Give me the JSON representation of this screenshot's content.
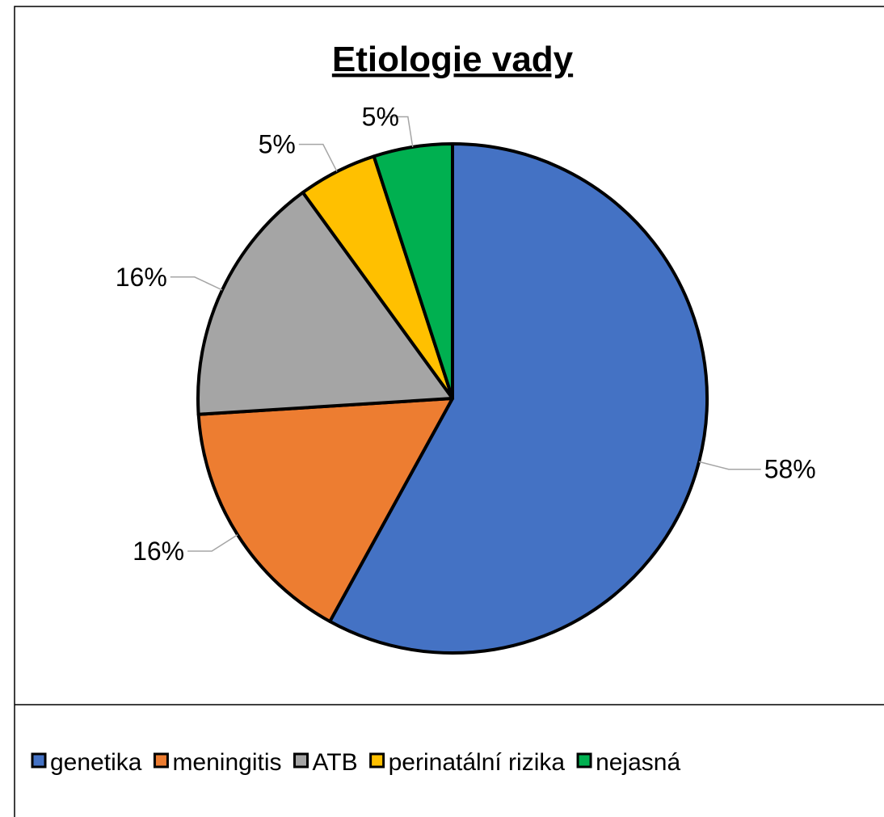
{
  "chart_data": {
    "type": "pie",
    "title": "Etiologie vady",
    "categories": [
      "genetika",
      "meningitis",
      "ATB",
      "perinatální rizika",
      "nejasná"
    ],
    "values": [
      58,
      16,
      16,
      5,
      5
    ],
    "value_labels": [
      "58%",
      "16%",
      "16%",
      "5%",
      "5%"
    ],
    "colors": [
      "#4472c4",
      "#ed7d31",
      "#a5a5a5",
      "#ffc000",
      "#00b050"
    ],
    "legend": "bottom"
  }
}
